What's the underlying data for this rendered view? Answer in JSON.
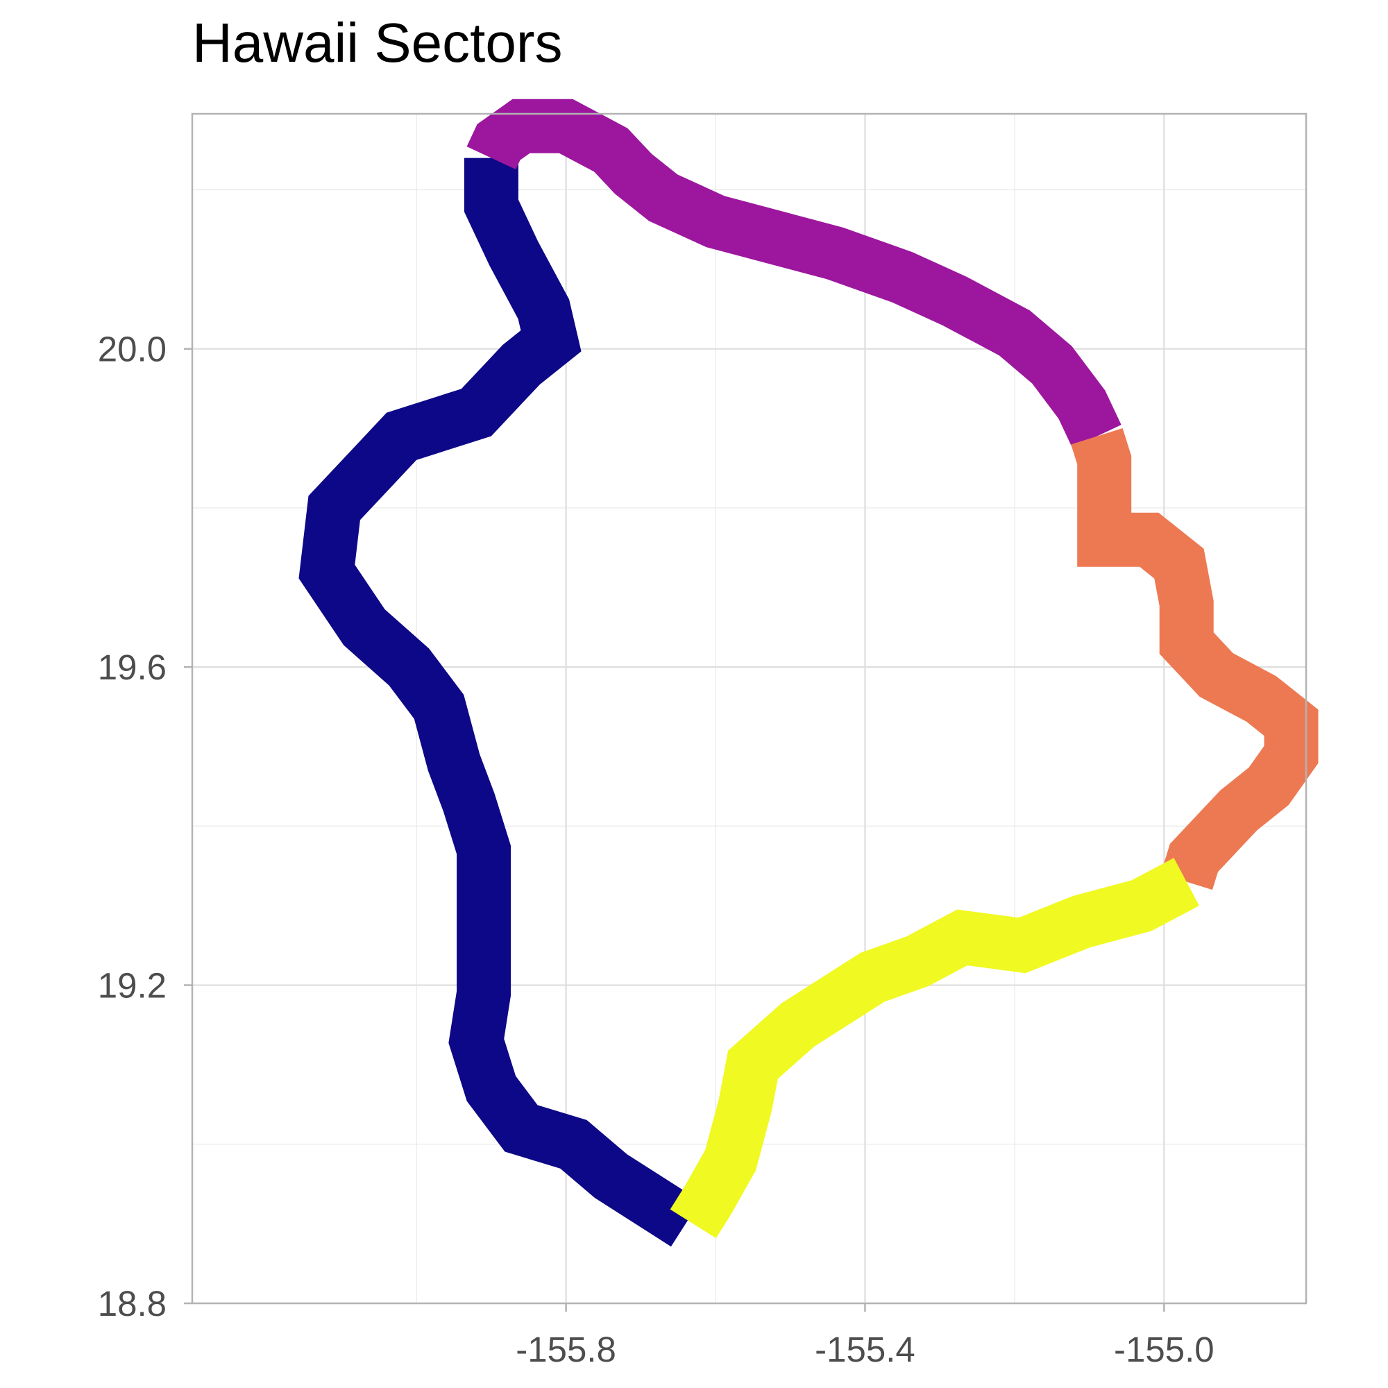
{
  "title": "Hawaii Sectors",
  "chart_data": {
    "type": "map",
    "title": "Hawaii Sectors",
    "xlabel": "",
    "ylabel": "",
    "xlim": [
      -156.3,
      -154.81
    ],
    "ylim": [
      18.8,
      20.2955
    ],
    "x_ticks": [
      -155.8,
      -155.4,
      -155.0
    ],
    "x_tick_labels": [
      "-155.8",
      "-155.4",
      "-155.0"
    ],
    "y_ticks": [
      18.8,
      19.2,
      19.6,
      20.0
    ],
    "y_tick_labels": [
      "18.8",
      "19.2",
      "19.6",
      "20.0"
    ],
    "grid": true,
    "legend": "none",
    "sectors": [
      {
        "color": "#0d0887",
        "coords": [
          [
            -155.9,
            20.24
          ],
          [
            -155.9,
            20.18
          ],
          [
            -155.87,
            20.12
          ],
          [
            -155.83,
            20.05
          ],
          [
            -155.82,
            20.01
          ],
          [
            -155.86,
            19.98
          ],
          [
            -155.92,
            19.92
          ],
          [
            -156.02,
            19.89
          ],
          [
            -156.07,
            19.84
          ],
          [
            -156.11,
            19.8
          ],
          [
            -156.12,
            19.72
          ],
          [
            -156.07,
            19.65
          ],
          [
            -156.01,
            19.6
          ],
          [
            -155.97,
            19.55
          ],
          [
            -155.95,
            19.48
          ],
          [
            -155.93,
            19.43
          ],
          [
            -155.91,
            19.37
          ],
          [
            -155.91,
            19.31
          ],
          [
            -155.91,
            19.25
          ],
          [
            -155.91,
            19.19
          ],
          [
            -155.92,
            19.13
          ],
          [
            -155.9,
            19.07
          ],
          [
            -155.86,
            19.02
          ],
          [
            -155.79,
            19.0
          ],
          [
            -155.74,
            18.96
          ],
          [
            -155.69,
            18.93
          ],
          [
            -155.64,
            18.9
          ]
        ]
      },
      {
        "color": "#9c179e",
        "coords": [
          [
            -155.9,
            20.24
          ],
          [
            -155.89,
            20.26
          ],
          [
            -155.86,
            20.28
          ],
          [
            -155.8,
            20.28
          ],
          [
            -155.74,
            20.25
          ],
          [
            -155.71,
            20.22
          ],
          [
            -155.67,
            20.19
          ],
          [
            -155.6,
            20.16
          ],
          [
            -155.52,
            20.14
          ],
          [
            -155.44,
            20.12
          ],
          [
            -155.35,
            20.09
          ],
          [
            -155.28,
            20.06
          ],
          [
            -155.2,
            20.02
          ],
          [
            -155.15,
            19.98
          ],
          [
            -155.11,
            19.93
          ],
          [
            -155.09,
            19.89
          ]
        ]
      },
      {
        "color": "#ed7953",
        "coords": [
          [
            -155.09,
            19.89
          ],
          [
            -155.08,
            19.86
          ],
          [
            -155.08,
            19.81
          ],
          [
            -155.08,
            19.76
          ],
          [
            -155.02,
            19.76
          ],
          [
            -154.98,
            19.73
          ],
          [
            -154.97,
            19.68
          ],
          [
            -154.97,
            19.63
          ],
          [
            -154.93,
            19.59
          ],
          [
            -154.87,
            19.56
          ],
          [
            -154.83,
            19.53
          ],
          [
            -154.83,
            19.49
          ],
          [
            -154.86,
            19.45
          ],
          [
            -154.9,
            19.42
          ],
          [
            -154.93,
            19.39
          ],
          [
            -154.96,
            19.36
          ],
          [
            -154.97,
            19.33
          ]
        ]
      },
      {
        "color": "#f0f921",
        "coords": [
          [
            -154.97,
            19.33
          ],
          [
            -155.03,
            19.3
          ],
          [
            -155.11,
            19.28
          ],
          [
            -155.19,
            19.25
          ],
          [
            -155.27,
            19.26
          ],
          [
            -155.33,
            19.23
          ],
          [
            -155.39,
            19.21
          ],
          [
            -155.44,
            19.18
          ],
          [
            -155.49,
            19.15
          ],
          [
            -155.55,
            19.1
          ],
          [
            -155.56,
            19.05
          ],
          [
            -155.58,
            18.98
          ],
          [
            -155.61,
            18.93
          ],
          [
            -155.63,
            18.9
          ]
        ]
      }
    ]
  }
}
